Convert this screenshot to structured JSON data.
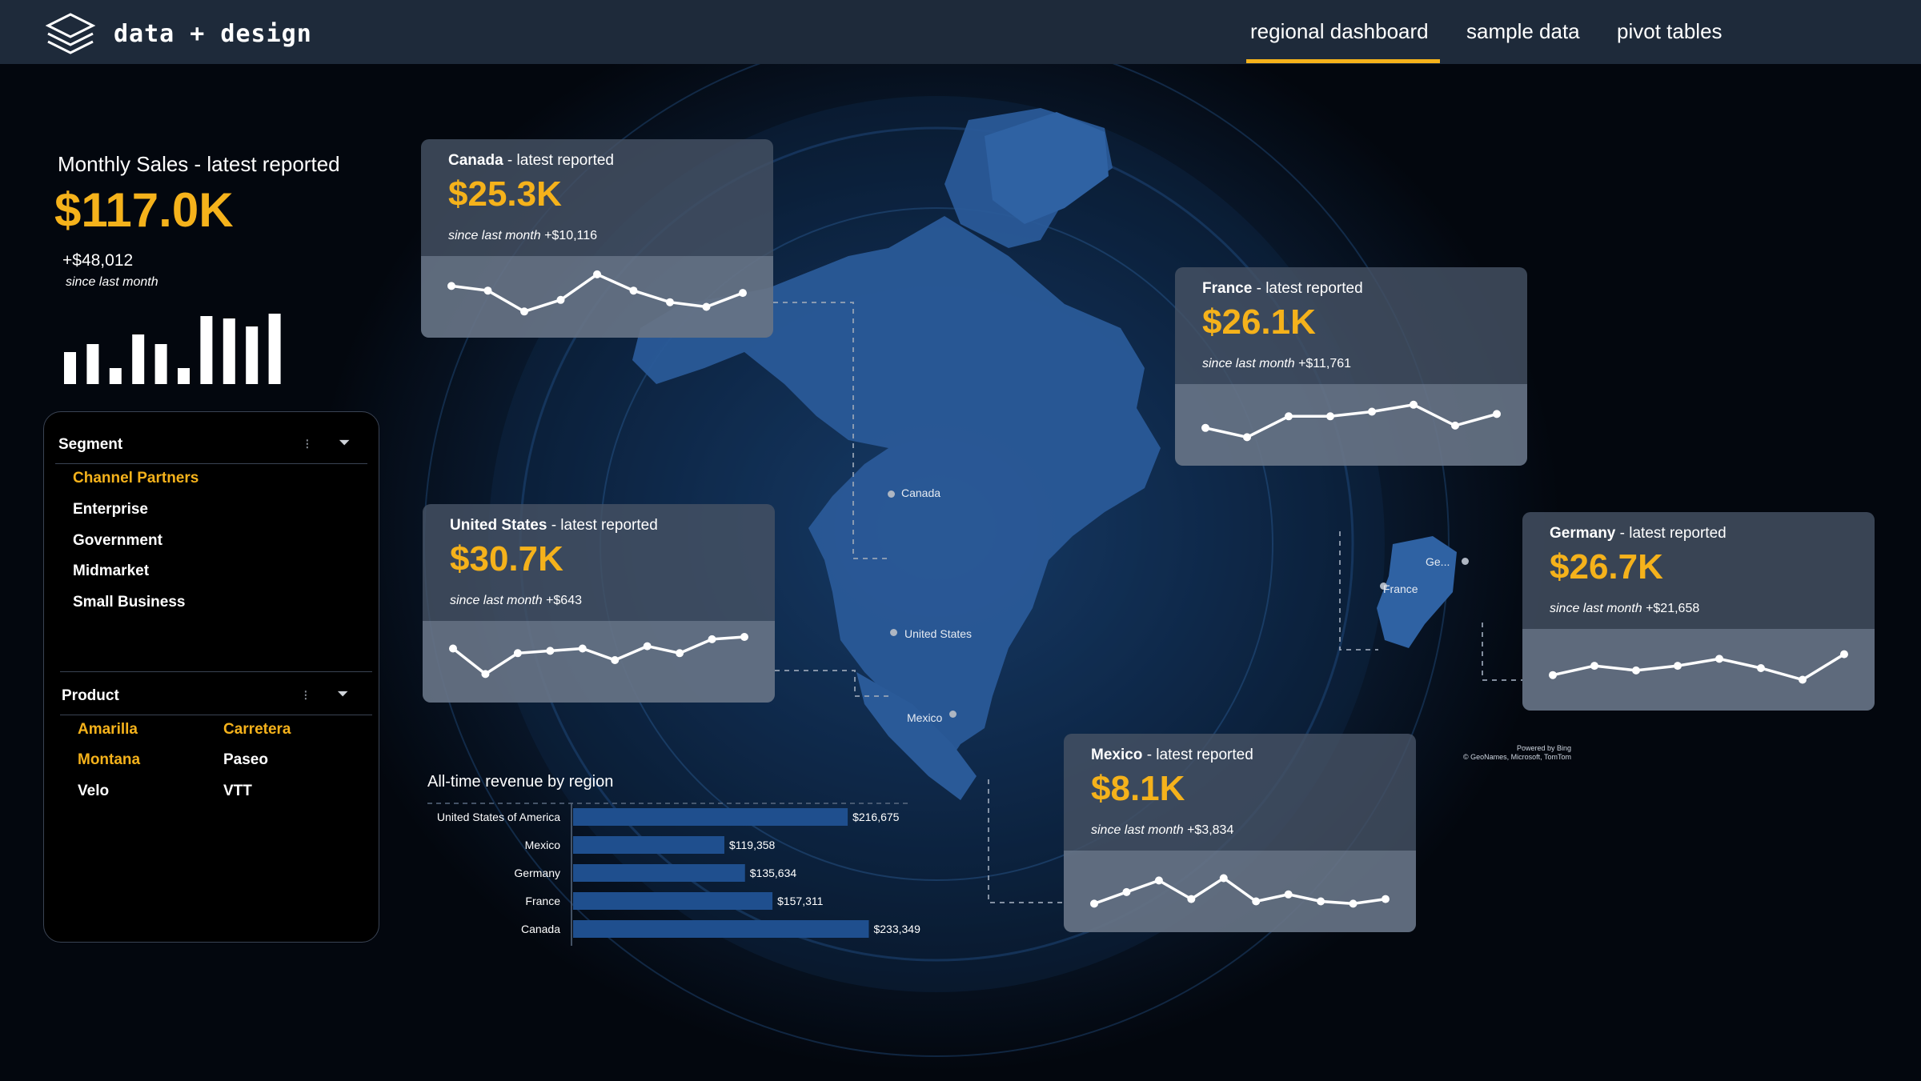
{
  "brand": {
    "name": "data + design",
    "logo_icon": "layers-icon"
  },
  "nav": {
    "items": [
      {
        "label": "regional dashboard",
        "active": true
      },
      {
        "label": "sample data",
        "active": false
      },
      {
        "label": "pivot tables",
        "active": false
      }
    ],
    "accent_color": "#f5b21b"
  },
  "summary": {
    "title": "Monthly Sales - latest reported",
    "value": "$117.0K",
    "delta": "+$48,012",
    "since": "since last month",
    "bars": [
      40,
      50,
      20,
      62,
      50,
      20,
      85,
      82,
      72,
      88
    ]
  },
  "segment_slicer": {
    "title": "Segment",
    "items": [
      {
        "label": "Channel Partners",
        "selected": true
      },
      {
        "label": "Enterprise",
        "selected": false
      },
      {
        "label": "Government",
        "selected": false
      },
      {
        "label": "Midmarket",
        "selected": false
      },
      {
        "label": "Small Business",
        "selected": false
      }
    ]
  },
  "product_slicer": {
    "title": "Product",
    "items": [
      {
        "label": "Amarilla",
        "selected": true
      },
      {
        "label": "Carretera",
        "selected": true
      },
      {
        "label": "Montana",
        "selected": true
      },
      {
        "label": "Paseo",
        "selected": false
      },
      {
        "label": "Velo",
        "selected": false
      },
      {
        "label": "VTT",
        "selected": false
      }
    ]
  },
  "cards": {
    "canada": {
      "country": "Canada",
      "suffix": " - latest reported",
      "value": "$25.3K",
      "since": "since last month",
      "delta": "+$10,116",
      "trend": [
        7,
        6,
        1.5,
        4,
        9.5,
        6,
        3.5,
        2.5,
        5.5
      ]
    },
    "united_states": {
      "country": "United States",
      "suffix": " - latest reported",
      "value": "$30.7K",
      "since": "since last month",
      "delta": "+$643",
      "trend": [
        7.5,
        2,
        6.5,
        7,
        7.5,
        5,
        8,
        6.5,
        9.5,
        10
      ]
    },
    "france": {
      "country": "France",
      "suffix": " - latest reported",
      "value": "$26.1K",
      "since": "since last month",
      "delta": "+$11,761",
      "trend": [
        4,
        2,
        6.5,
        6.5,
        7.5,
        9,
        4.5,
        7
      ]
    },
    "germany": {
      "country": "Germany",
      "suffix": " - latest reported",
      "value": "$26.7K",
      "since": "since last month",
      "delta": "+$21,658",
      "trend": [
        3.5,
        5.5,
        4.5,
        5.5,
        7,
        5,
        2.5,
        8
      ]
    },
    "mexico": {
      "country": "Mexico",
      "suffix": " - latest reported",
      "value": "$8.1K",
      "since": "since last month",
      "delta": "+$3,834",
      "trend": [
        2,
        4.5,
        7,
        3,
        7.5,
        2.5,
        4,
        2.5,
        2,
        3
      ]
    }
  },
  "map": {
    "labels": {
      "canada": "Canada",
      "united_states": "United States",
      "mexico": "Mexico",
      "france": "France",
      "germany": "Ge..."
    },
    "attribution_1": "Powered by Bing",
    "attribution_2": "© GeoNames, Microsoft, TomTom"
  },
  "revenue": {
    "title": "All-time revenue by region",
    "chart_data": {
      "type": "bar",
      "categories": [
        "United States of America",
        "Mexico",
        "Germany",
        "France",
        "Canada"
      ],
      "values": [
        216675,
        119358,
        135634,
        157311,
        233349
      ],
      "value_labels": [
        "$216,675",
        "$119,358",
        "$135,634",
        "$157,311",
        "$233,349"
      ],
      "bar_color": "#1f4f8e"
    }
  }
}
